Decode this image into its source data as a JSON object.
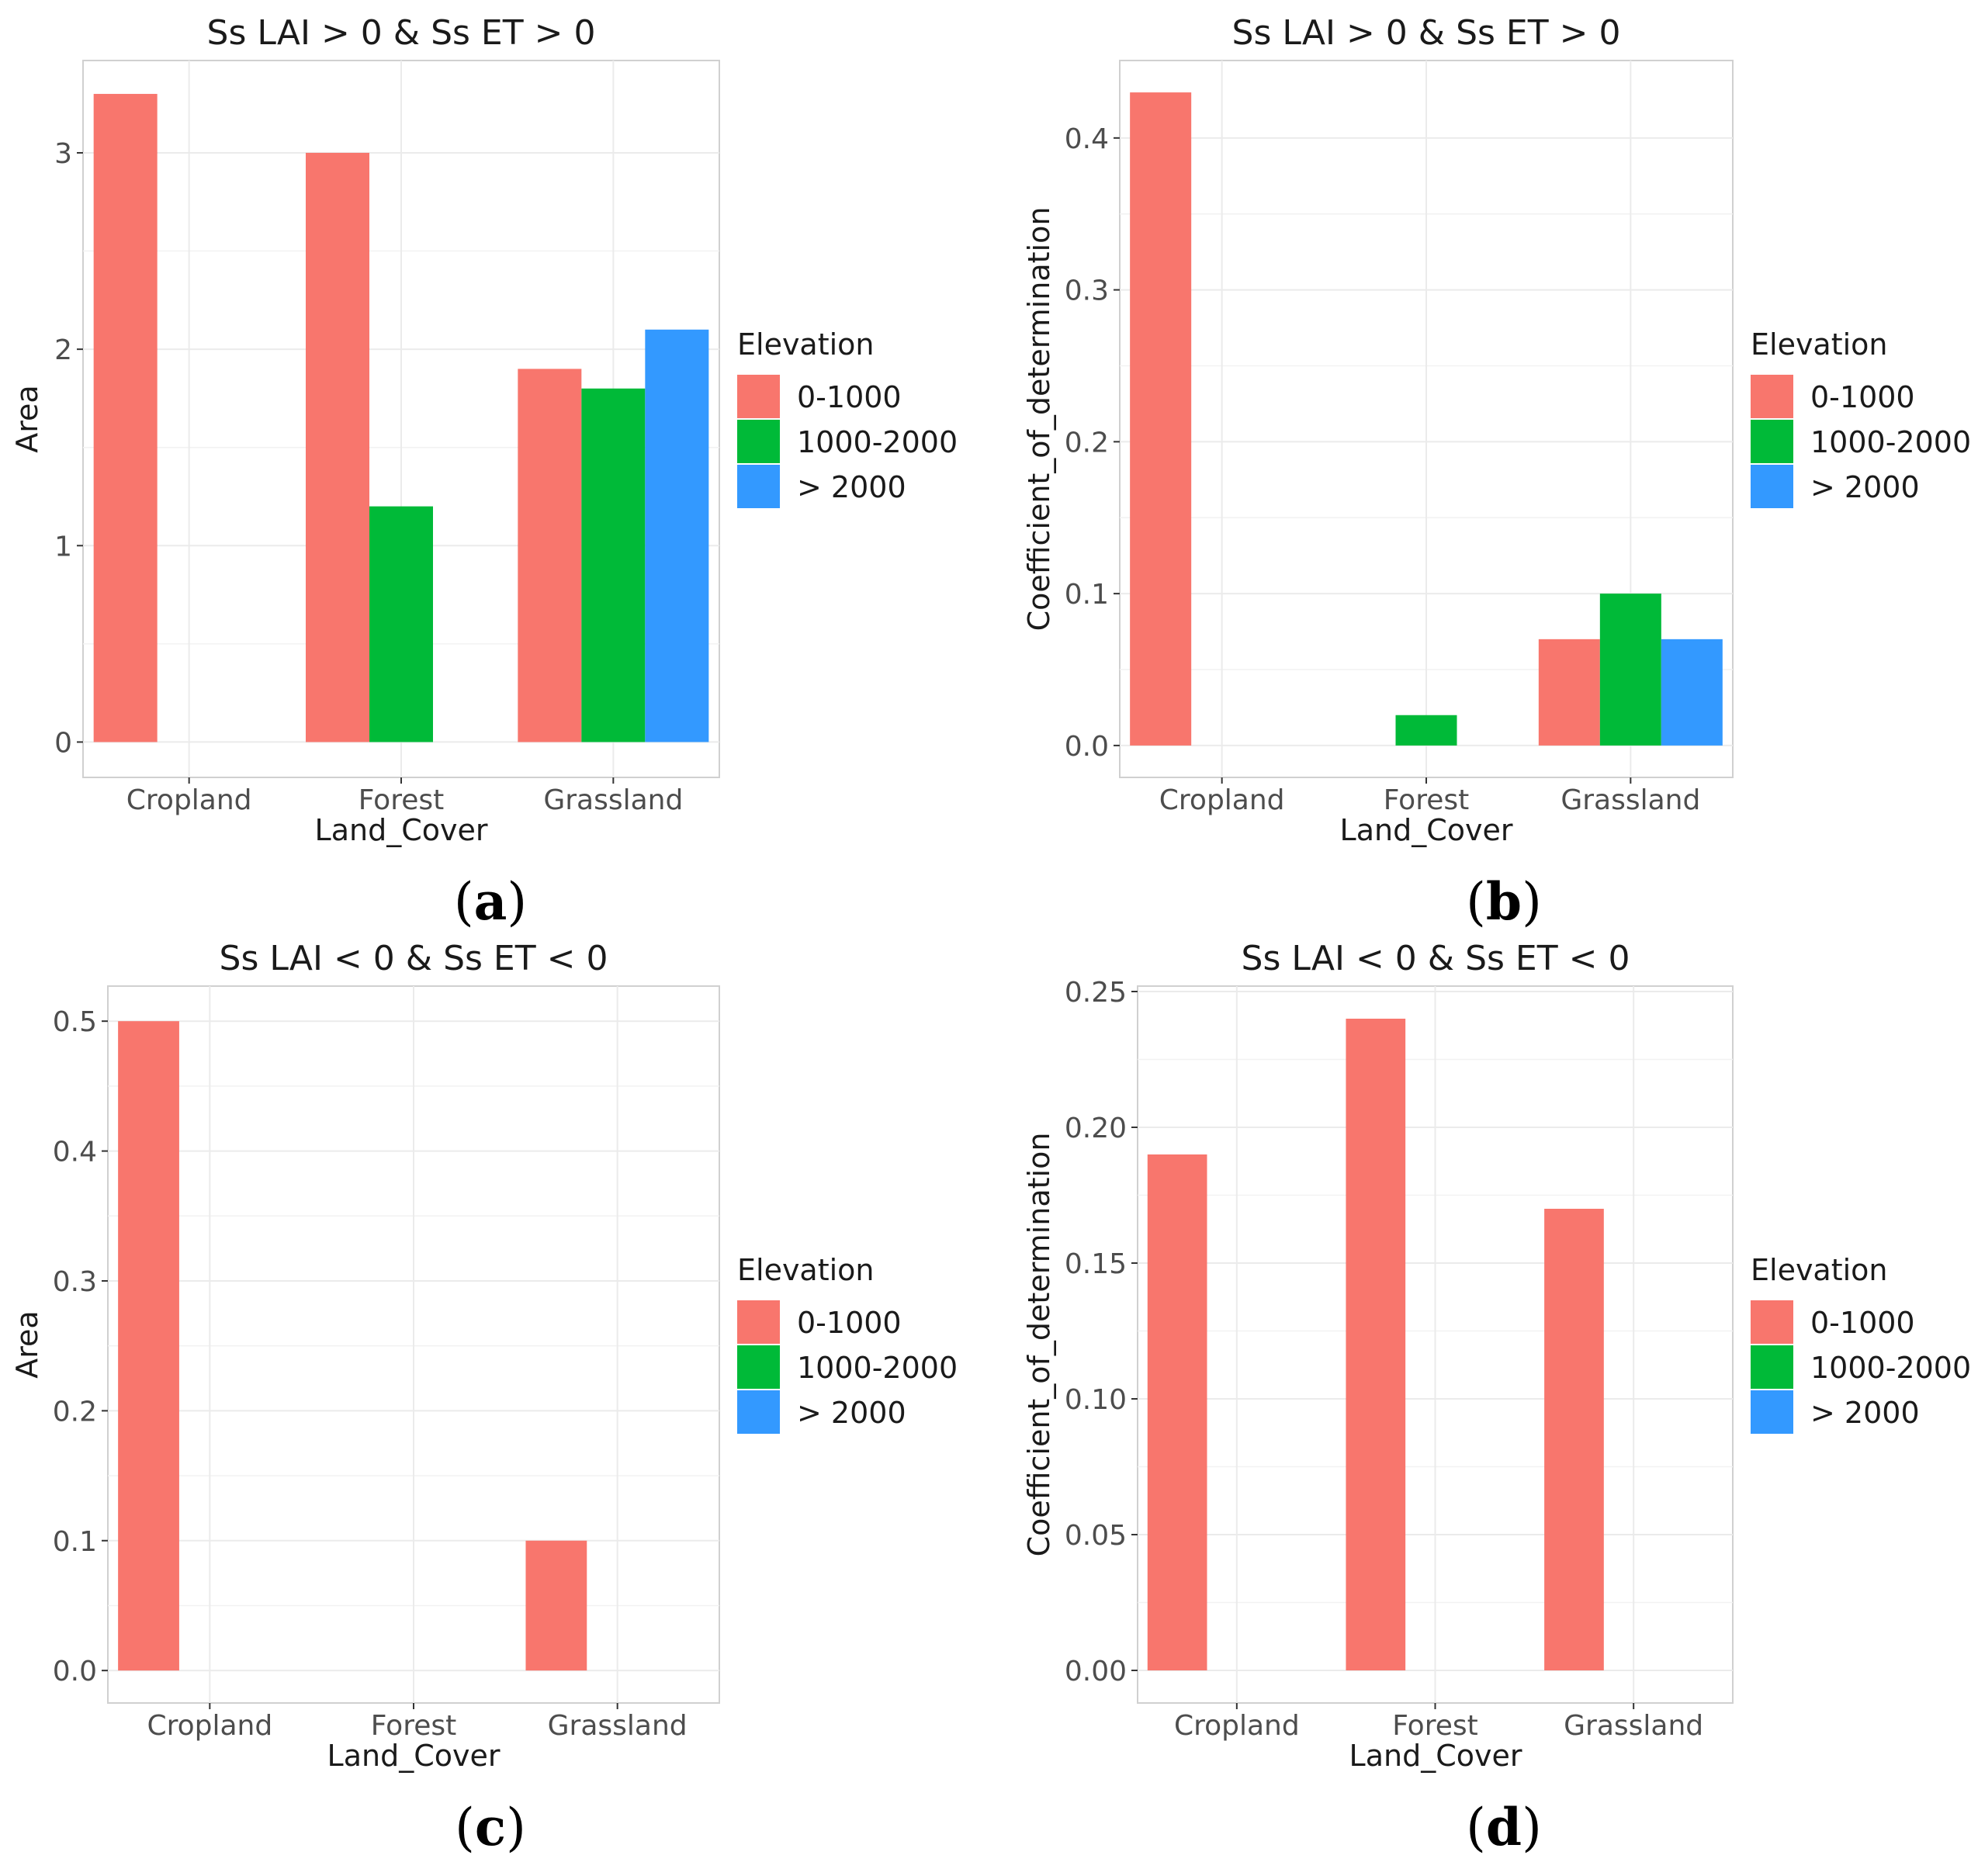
{
  "chart_data": [
    {
      "id": "a",
      "caption_letter": "a",
      "type": "bar",
      "title": "Ss LAI > 0 & Ss ET > 0",
      "xlabel": "Land_Cover",
      "ylabel": "Area",
      "categories": [
        "Cropland",
        "Forest",
        "Grassland"
      ],
      "yticks": [
        "0",
        "1",
        "2",
        "3"
      ],
      "ytick_values": [
        0,
        1,
        2,
        3
      ],
      "ylim": [
        -0.18,
        3.47
      ],
      "grid": true,
      "legend_position": "right",
      "legend_title": "Elevation",
      "series": [
        {
          "name": "0-1000",
          "color": "#F8766D",
          "values": [
            3.3,
            3.0,
            1.9
          ]
        },
        {
          "name": "1000-2000",
          "color": "#00BA38",
          "values": [
            null,
            1.2,
            1.8
          ]
        },
        {
          "name": "> 2000",
          "color": "#3399FF",
          "values": [
            null,
            null,
            2.1
          ]
        }
      ]
    },
    {
      "id": "b",
      "caption_letter": "b",
      "type": "bar",
      "title": "Ss LAI > 0 & Ss ET > 0",
      "xlabel": "Land_Cover",
      "ylabel": "Coefficient_of_determination",
      "categories": [
        "Cropland",
        "Forest",
        "Grassland"
      ],
      "yticks": [
        "0.0",
        "0.1",
        "0.2",
        "0.3",
        "0.4"
      ],
      "ytick_values": [
        0.0,
        0.1,
        0.2,
        0.3,
        0.4
      ],
      "ylim": [
        -0.021,
        0.451
      ],
      "grid": true,
      "legend_position": "right",
      "legend_title": "Elevation",
      "series": [
        {
          "name": "0-1000",
          "color": "#F8766D",
          "values": [
            0.43,
            null,
            0.07
          ]
        },
        {
          "name": "1000-2000",
          "color": "#00BA38",
          "values": [
            null,
            0.02,
            0.1
          ]
        },
        {
          "name": "> 2000",
          "color": "#3399FF",
          "values": [
            null,
            null,
            0.07
          ]
        }
      ]
    },
    {
      "id": "c",
      "caption_letter": "c",
      "type": "bar",
      "title": "Ss LAI < 0 & Ss ET < 0",
      "xlabel": "Land_Cover",
      "ylabel": "Area",
      "categories": [
        "Cropland",
        "Forest",
        "Grassland"
      ],
      "yticks": [
        "0.0",
        "0.1",
        "0.2",
        "0.3",
        "0.4",
        "0.5"
      ],
      "ytick_values": [
        0.0,
        0.1,
        0.2,
        0.3,
        0.4,
        0.5
      ],
      "ylim": [
        -0.025,
        0.527
      ],
      "grid": true,
      "legend_position": "right",
      "legend_title": "Elevation",
      "series": [
        {
          "name": "0-1000",
          "color": "#F8766D",
          "values": [
            0.5,
            null,
            0.1
          ]
        },
        {
          "name": "1000-2000",
          "color": "#00BA38",
          "values": [
            null,
            null,
            null
          ]
        },
        {
          "name": "> 2000",
          "color": "#3399FF",
          "values": [
            null,
            null,
            null
          ]
        }
      ]
    },
    {
      "id": "d",
      "caption_letter": "d",
      "type": "bar",
      "title": "Ss LAI < 0 & Ss ET < 0",
      "xlabel": "Land_Cover",
      "ylabel": "Coefficient_of_determination",
      "categories": [
        "Cropland",
        "Forest",
        "Grassland"
      ],
      "yticks": [
        "0.00",
        "0.05",
        "0.10",
        "0.15",
        "0.20",
        "0.25"
      ],
      "ytick_values": [
        0.0,
        0.05,
        0.1,
        0.15,
        0.2,
        0.25
      ],
      "ylim": [
        -0.012,
        0.252
      ],
      "grid": true,
      "legend_position": "right",
      "legend_title": "Elevation",
      "series": [
        {
          "name": "0-1000",
          "color": "#F8766D",
          "values": [
            0.19,
            0.24,
            0.17
          ]
        },
        {
          "name": "1000-2000",
          "color": "#00BA38",
          "values": [
            null,
            null,
            null
          ]
        },
        {
          "name": "> 2000",
          "color": "#3399FF",
          "values": [
            null,
            null,
            null
          ]
        }
      ]
    }
  ]
}
